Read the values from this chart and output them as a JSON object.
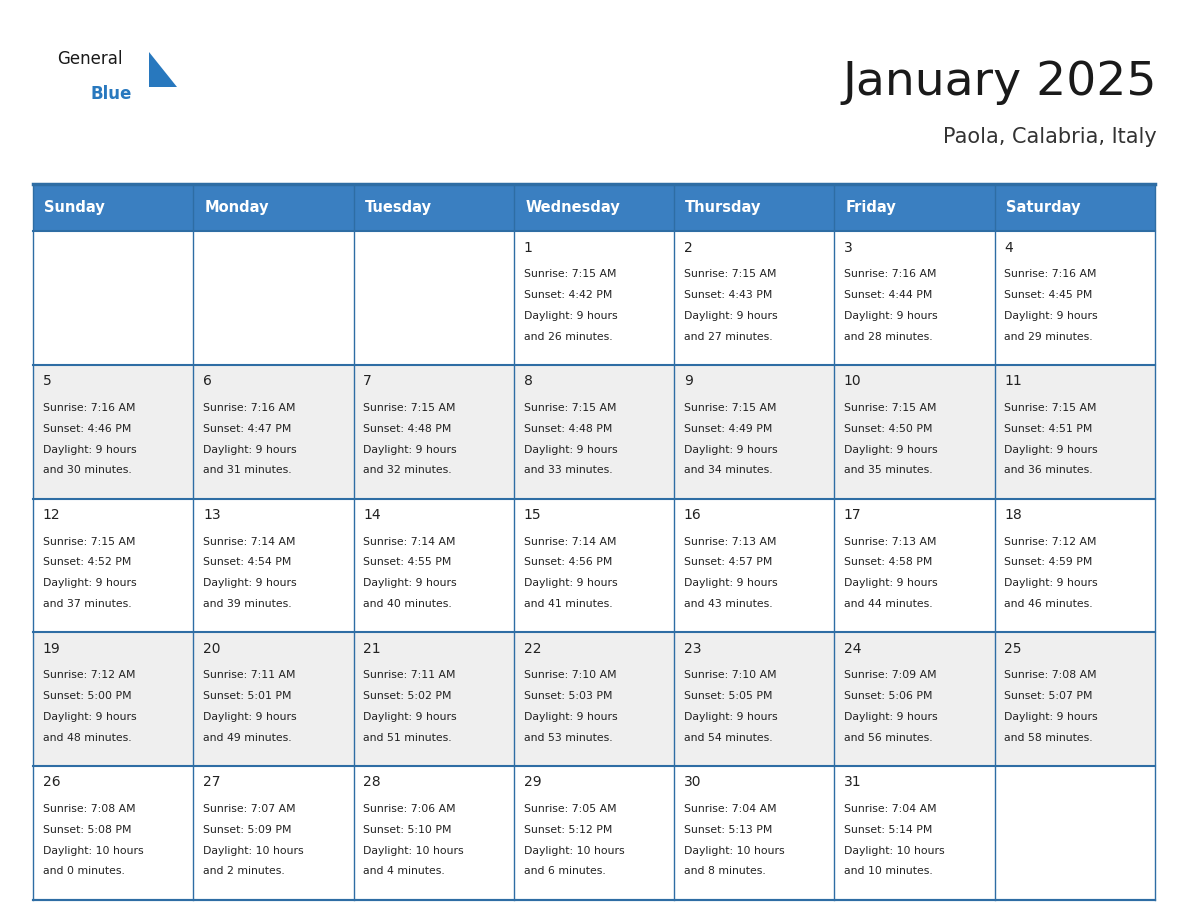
{
  "title": "January 2025",
  "subtitle": "Paola, Calabria, Italy",
  "days_of_week": [
    "Sunday",
    "Monday",
    "Tuesday",
    "Wednesday",
    "Thursday",
    "Friday",
    "Saturday"
  ],
  "header_bg": "#3A7FC1",
  "header_text": "#FFFFFF",
  "cell_bg_light": "#EFEFEF",
  "cell_bg_white": "#FFFFFF",
  "cell_text": "#222222",
  "border_color": "#2E6DA4",
  "title_color": "#1a1a1a",
  "subtitle_color": "#333333",
  "logo_general_color": "#1a1a1a",
  "logo_blue_color": "#2878BE",
  "calendar_data": [
    [
      null,
      null,
      null,
      {
        "day": 1,
        "sunrise": "7:15 AM",
        "sunset": "4:42 PM",
        "daylight_h": "9 hours",
        "daylight_m": "26 minutes."
      },
      {
        "day": 2,
        "sunrise": "7:15 AM",
        "sunset": "4:43 PM",
        "daylight_h": "9 hours",
        "daylight_m": "27 minutes."
      },
      {
        "day": 3,
        "sunrise": "7:16 AM",
        "sunset": "4:44 PM",
        "daylight_h": "9 hours",
        "daylight_m": "28 minutes."
      },
      {
        "day": 4,
        "sunrise": "7:16 AM",
        "sunset": "4:45 PM",
        "daylight_h": "9 hours",
        "daylight_m": "29 minutes."
      }
    ],
    [
      {
        "day": 5,
        "sunrise": "7:16 AM",
        "sunset": "4:46 PM",
        "daylight_h": "9 hours",
        "daylight_m": "30 minutes."
      },
      {
        "day": 6,
        "sunrise": "7:16 AM",
        "sunset": "4:47 PM",
        "daylight_h": "9 hours",
        "daylight_m": "31 minutes."
      },
      {
        "day": 7,
        "sunrise": "7:15 AM",
        "sunset": "4:48 PM",
        "daylight_h": "9 hours",
        "daylight_m": "32 minutes."
      },
      {
        "day": 8,
        "sunrise": "7:15 AM",
        "sunset": "4:48 PM",
        "daylight_h": "9 hours",
        "daylight_m": "33 minutes."
      },
      {
        "day": 9,
        "sunrise": "7:15 AM",
        "sunset": "4:49 PM",
        "daylight_h": "9 hours",
        "daylight_m": "34 minutes."
      },
      {
        "day": 10,
        "sunrise": "7:15 AM",
        "sunset": "4:50 PM",
        "daylight_h": "9 hours",
        "daylight_m": "35 minutes."
      },
      {
        "day": 11,
        "sunrise": "7:15 AM",
        "sunset": "4:51 PM",
        "daylight_h": "9 hours",
        "daylight_m": "36 minutes."
      }
    ],
    [
      {
        "day": 12,
        "sunrise": "7:15 AM",
        "sunset": "4:52 PM",
        "daylight_h": "9 hours",
        "daylight_m": "37 minutes."
      },
      {
        "day": 13,
        "sunrise": "7:14 AM",
        "sunset": "4:54 PM",
        "daylight_h": "9 hours",
        "daylight_m": "39 minutes."
      },
      {
        "day": 14,
        "sunrise": "7:14 AM",
        "sunset": "4:55 PM",
        "daylight_h": "9 hours",
        "daylight_m": "40 minutes."
      },
      {
        "day": 15,
        "sunrise": "7:14 AM",
        "sunset": "4:56 PM",
        "daylight_h": "9 hours",
        "daylight_m": "41 minutes."
      },
      {
        "day": 16,
        "sunrise": "7:13 AM",
        "sunset": "4:57 PM",
        "daylight_h": "9 hours",
        "daylight_m": "43 minutes."
      },
      {
        "day": 17,
        "sunrise": "7:13 AM",
        "sunset": "4:58 PM",
        "daylight_h": "9 hours",
        "daylight_m": "44 minutes."
      },
      {
        "day": 18,
        "sunrise": "7:12 AM",
        "sunset": "4:59 PM",
        "daylight_h": "9 hours",
        "daylight_m": "46 minutes."
      }
    ],
    [
      {
        "day": 19,
        "sunrise": "7:12 AM",
        "sunset": "5:00 PM",
        "daylight_h": "9 hours",
        "daylight_m": "48 minutes."
      },
      {
        "day": 20,
        "sunrise": "7:11 AM",
        "sunset": "5:01 PM",
        "daylight_h": "9 hours",
        "daylight_m": "49 minutes."
      },
      {
        "day": 21,
        "sunrise": "7:11 AM",
        "sunset": "5:02 PM",
        "daylight_h": "9 hours",
        "daylight_m": "51 minutes."
      },
      {
        "day": 22,
        "sunrise": "7:10 AM",
        "sunset": "5:03 PM",
        "daylight_h": "9 hours",
        "daylight_m": "53 minutes."
      },
      {
        "day": 23,
        "sunrise": "7:10 AM",
        "sunset": "5:05 PM",
        "daylight_h": "9 hours",
        "daylight_m": "54 minutes."
      },
      {
        "day": 24,
        "sunrise": "7:09 AM",
        "sunset": "5:06 PM",
        "daylight_h": "9 hours",
        "daylight_m": "56 minutes."
      },
      {
        "day": 25,
        "sunrise": "7:08 AM",
        "sunset": "5:07 PM",
        "daylight_h": "9 hours",
        "daylight_m": "58 minutes."
      }
    ],
    [
      {
        "day": 26,
        "sunrise": "7:08 AM",
        "sunset": "5:08 PM",
        "daylight_h": "10 hours",
        "daylight_m": "0 minutes."
      },
      {
        "day": 27,
        "sunrise": "7:07 AM",
        "sunset": "5:09 PM",
        "daylight_h": "10 hours",
        "daylight_m": "2 minutes."
      },
      {
        "day": 28,
        "sunrise": "7:06 AM",
        "sunset": "5:10 PM",
        "daylight_h": "10 hours",
        "daylight_m": "4 minutes."
      },
      {
        "day": 29,
        "sunrise": "7:05 AM",
        "sunset": "5:12 PM",
        "daylight_h": "10 hours",
        "daylight_m": "6 minutes."
      },
      {
        "day": 30,
        "sunrise": "7:04 AM",
        "sunset": "5:13 PM",
        "daylight_h": "10 hours",
        "daylight_m": "8 minutes."
      },
      {
        "day": 31,
        "sunrise": "7:04 AM",
        "sunset": "5:14 PM",
        "daylight_h": "10 hours",
        "daylight_m": "10 minutes."
      },
      null
    ]
  ],
  "figsize": [
    11.88,
    9.18
  ],
  "dpi": 100
}
